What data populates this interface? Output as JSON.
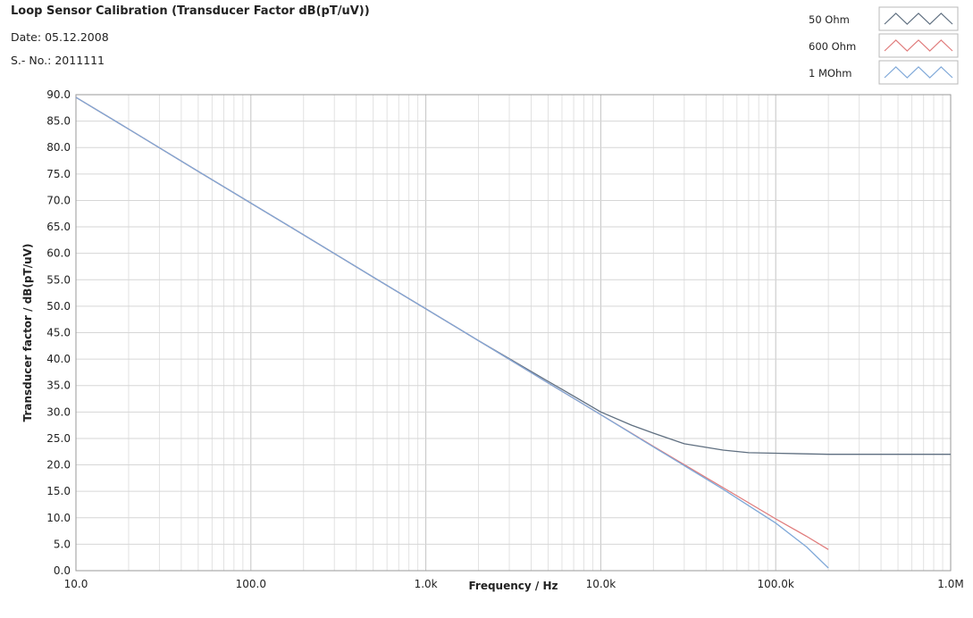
{
  "header": {
    "title": "Loop Sensor Calibration (Transducer Factor dB(pT/uV))",
    "date_label": "Date:",
    "date_value": "05.12.2008",
    "serial_label": "S.- No.:",
    "serial_value": "2011111"
  },
  "chart_data": {
    "type": "line",
    "title": "Loop Sensor Calibration (Transducer Factor dB(pT/uV))",
    "xlabel": "Frequency / Hz",
    "ylabel": "Transducer factor / dB(pT/uV)",
    "xscale": "log",
    "xlim": [
      10,
      1000000
    ],
    "ylim": [
      0,
      90
    ],
    "x_ticks": [
      {
        "value": 10,
        "label": "10.0"
      },
      {
        "value": 100,
        "label": "100.0"
      },
      {
        "value": 1000,
        "label": "1.0k"
      },
      {
        "value": 10000,
        "label": "10.0k"
      },
      {
        "value": 100000,
        "label": "100.0k"
      },
      {
        "value": 1000000,
        "label": "1.0M"
      }
    ],
    "y_ticks": [
      0,
      5,
      10,
      15,
      20,
      25,
      30,
      35,
      40,
      45,
      50,
      55,
      60,
      65,
      70,
      75,
      80,
      85,
      90
    ],
    "y_tick_labels": [
      "0.0",
      "5.0",
      "10.0",
      "15.0",
      "20.0",
      "25.0",
      "30.0",
      "35.0",
      "40.0",
      "45.0",
      "50.0",
      "55.0",
      "60.0",
      "65.0",
      "70.0",
      "75.0",
      "80.0",
      "85.0",
      "90.0"
    ],
    "grid": true,
    "legend_position": "top-right",
    "series": [
      {
        "name": "50 Ohm",
        "color": "#5f6f80",
        "x": [
          10,
          20,
          50,
          100,
          200,
          500,
          1000,
          2000,
          5000,
          7000,
          10000,
          15000,
          20000,
          30000,
          50000,
          70000,
          100000,
          200000,
          500000,
          1000000
        ],
        "y": [
          89.5,
          83.5,
          75.5,
          69.5,
          63.5,
          55.5,
          49.5,
          43.5,
          35.8,
          33.0,
          30.0,
          27.5,
          26.0,
          24.0,
          22.8,
          22.3,
          22.2,
          22.0,
          22.0,
          22.0
        ]
      },
      {
        "name": "600 Ohm",
        "color": "#e07b7b",
        "x": [
          10,
          20,
          50,
          100,
          200,
          500,
          1000,
          2000,
          5000,
          10000,
          20000,
          50000,
          100000,
          150000,
          200000
        ],
        "y": [
          89.5,
          83.5,
          75.5,
          69.5,
          63.5,
          55.5,
          49.5,
          43.5,
          35.5,
          29.5,
          23.5,
          15.7,
          9.8,
          6.5,
          4.0
        ]
      },
      {
        "name": "1 MOhm",
        "color": "#7fa8d8",
        "x": [
          10,
          20,
          50,
          100,
          200,
          500,
          1000,
          2000,
          5000,
          10000,
          20000,
          50000,
          100000,
          150000,
          200000
        ],
        "y": [
          89.5,
          83.5,
          75.5,
          69.5,
          63.5,
          55.5,
          49.5,
          43.5,
          35.5,
          29.5,
          23.4,
          15.4,
          9.0,
          4.5,
          0.5
        ]
      }
    ]
  }
}
